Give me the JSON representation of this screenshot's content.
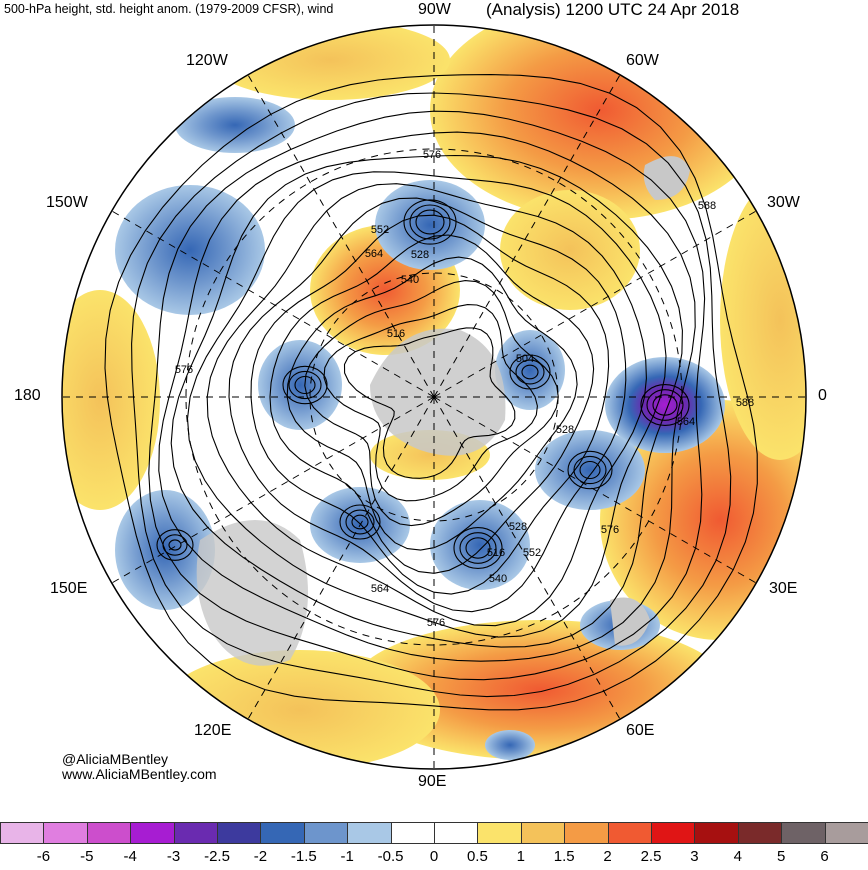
{
  "header": {
    "left_title": "500-hPa height, std. height anom. (1979-2009 CFSR), wind",
    "right_title": "(Analysis) 1200 UTC 24 Apr 2018"
  },
  "longitude_labels": {
    "top": "90W",
    "upper_left": "120W",
    "upper_right": "60W",
    "left_upper": "150W",
    "right_upper": "30W",
    "left": "180",
    "right": "0",
    "left_lower": "150E",
    "right_lower": "30E",
    "lower_left": "120E",
    "lower_right": "60E",
    "bottom": "90E"
  },
  "contour_labels": [
    "576",
    "552",
    "528",
    "564",
    "540",
    "516",
    "504",
    "588",
    "528",
    "564",
    "576",
    "576",
    "528",
    "516",
    "552",
    "540",
    "564",
    "576",
    "588"
  ],
  "credits": {
    "handle": "@AliciaMBentley",
    "website": "www.AliciaMBentley.com"
  },
  "colorbar": {
    "ticks": [
      "-6",
      "-5",
      "-4",
      "-3",
      "-2.5",
      "-2",
      "-1.5",
      "-1",
      "-0.5",
      "0",
      "0.5",
      "1",
      "1.5",
      "2",
      "2.5",
      "3",
      "4",
      "5",
      "6"
    ],
    "colors": [
      "#e8b4e8",
      "#e07ee0",
      "#cc4ecc",
      "#a71dd2",
      "#6a2bb0",
      "#3d3a9e",
      "#3567b5",
      "#6d95cc",
      "#a9c8e6",
      "#ffffff",
      "#ffffff",
      "#fbe36b",
      "#f4c25a",
      "#f49b45",
      "#f05a32",
      "#e01515",
      "#a61010",
      "#7a2a2a",
      "#6e6266",
      "#a89c9c"
    ]
  },
  "style": {
    "land_gray": "#c8c8c8",
    "warm_anom": "#f49b45",
    "cool_anom": "#6d95cc"
  }
}
